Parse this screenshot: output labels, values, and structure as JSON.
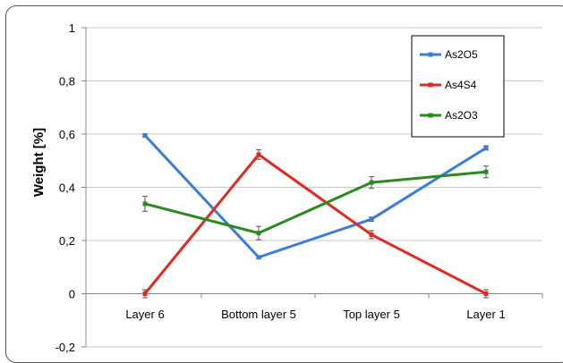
{
  "chart_data": {
    "type": "line",
    "categories": [
      "Layer 6",
      "Bottom layer 5",
      "Top layer 5",
      "Layer 1"
    ],
    "ylabel": "Weight [%]",
    "ylim": [
      -0.2,
      1
    ],
    "yticks": [
      "1",
      "0,8",
      "0,6",
      "0,4",
      "0,2",
      "0",
      "-0,2"
    ],
    "ytick_values": [
      1,
      0.8,
      0.6,
      0.4,
      0.2,
      0,
      -0.2
    ],
    "grid": true,
    "legend_position": "top-right",
    "series": [
      {
        "name": "As2O5",
        "color": "#3a7be0",
        "values": [
          0.595,
          0.137,
          0.28,
          0.548
        ],
        "errors": [
          0.005,
          0.005,
          0.008,
          0.008
        ]
      },
      {
        "name": "As4S4",
        "color": "#e0291f",
        "values": [
          0.0,
          0.523,
          0.222,
          0.0
        ],
        "errors": [
          0.015,
          0.018,
          0.015,
          0.015
        ]
      },
      {
        "name": "As2O3",
        "color": "#2b8a1e",
        "values": [
          0.338,
          0.228,
          0.418,
          0.458
        ],
        "errors": [
          0.028,
          0.025,
          0.022,
          0.022
        ]
      }
    ]
  }
}
